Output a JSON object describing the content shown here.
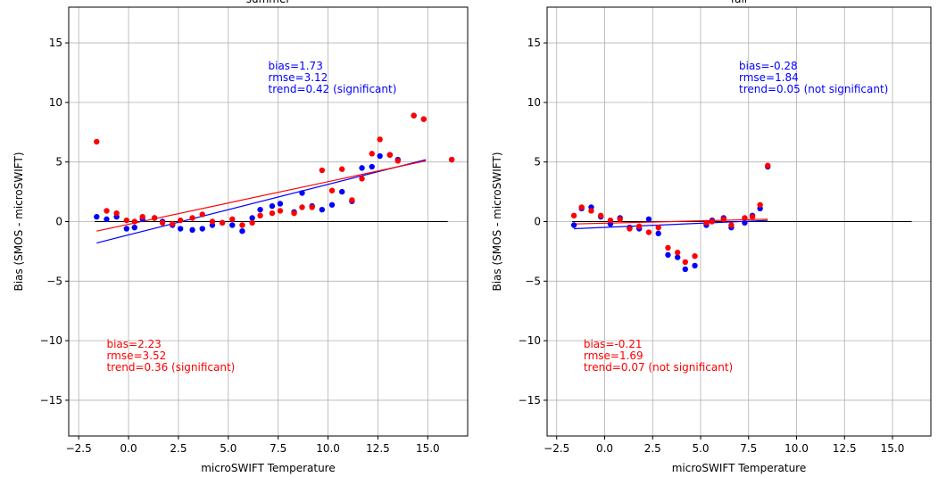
{
  "chart_data": [
    {
      "type": "scatter",
      "title": "summer",
      "xlabel": "microSWIFT Temperature",
      "ylabel": "Bias (SMOS - microSWIFT)",
      "xlim": [
        -3.0,
        17.0
      ],
      "ylim": [
        -18,
        18
      ],
      "xticks": [
        -2.5,
        0.0,
        2.5,
        5.0,
        7.5,
        10.0,
        12.5,
        15.0
      ],
      "xtick_labels": [
        "−2.5",
        "0.0",
        "2.5",
        "5.0",
        "7.5",
        "10.0",
        "12.5",
        "15.0"
      ],
      "yticks": [
        -15,
        -10,
        -5,
        0,
        5,
        10,
        15
      ],
      "ytick_labels": [
        "−15",
        "−10",
        "−5",
        "0",
        "5",
        "10",
        "15"
      ],
      "grid": true,
      "zero_line": [
        -1.7,
        16.0
      ],
      "series": [
        {
          "color": "#0000ff",
          "points": [
            [
              -1.6,
              0.4
            ],
            [
              -1.1,
              0.2
            ],
            [
              -0.6,
              0.4
            ],
            [
              -0.1,
              -0.6
            ],
            [
              0.3,
              -0.5
            ],
            [
              0.7,
              0.2
            ],
            [
              1.3,
              0.3
            ],
            [
              1.7,
              0.0
            ],
            [
              2.2,
              -0.3
            ],
            [
              2.6,
              -0.6
            ],
            [
              3.2,
              -0.7
            ],
            [
              3.7,
              -0.6
            ],
            [
              4.2,
              -0.3
            ],
            [
              4.7,
              -0.1
            ],
            [
              5.2,
              -0.3
            ],
            [
              5.7,
              -0.8
            ],
            [
              6.2,
              0.3
            ],
            [
              6.6,
              1.0
            ],
            [
              7.2,
              1.3
            ],
            [
              7.6,
              1.5
            ],
            [
              8.3,
              0.8
            ],
            [
              8.7,
              2.4
            ],
            [
              9.2,
              1.3
            ],
            [
              9.7,
              1.0
            ],
            [
              10.2,
              1.4
            ],
            [
              10.7,
              2.5
            ],
            [
              11.2,
              1.7
            ],
            [
              11.7,
              4.5
            ],
            [
              12.2,
              4.6
            ],
            [
              12.6,
              5.5
            ],
            [
              13.1,
              5.6
            ],
            [
              13.5,
              5.2
            ],
            [
              14.3,
              8.9
            ],
            [
              14.8,
              8.6
            ],
            [
              16.2,
              5.2
            ]
          ],
          "trend_line": [
            [
              -1.6,
              -1.8
            ],
            [
              14.9,
              5.2
            ]
          ]
        },
        {
          "color": "#ff0000",
          "points": [
            [
              -1.6,
              6.7
            ],
            [
              -1.1,
              0.9
            ],
            [
              -0.6,
              0.7
            ],
            [
              -0.1,
              0.1
            ],
            [
              0.3,
              0.0
            ],
            [
              0.7,
              0.4
            ],
            [
              1.3,
              0.3
            ],
            [
              1.7,
              -0.1
            ],
            [
              2.2,
              -0.2
            ],
            [
              2.6,
              0.1
            ],
            [
              3.2,
              0.3
            ],
            [
              3.7,
              0.6
            ],
            [
              4.2,
              0.0
            ],
            [
              4.7,
              -0.1
            ],
            [
              5.2,
              0.2
            ],
            [
              5.7,
              -0.3
            ],
            [
              6.2,
              -0.1
            ],
            [
              6.6,
              0.5
            ],
            [
              7.2,
              0.7
            ],
            [
              7.6,
              0.9
            ],
            [
              8.3,
              0.7
            ],
            [
              8.7,
              1.2
            ],
            [
              9.2,
              1.2
            ],
            [
              9.7,
              4.3
            ],
            [
              10.2,
              2.6
            ],
            [
              10.7,
              4.4
            ],
            [
              11.2,
              1.8
            ],
            [
              11.7,
              3.6
            ],
            [
              12.2,
              5.7
            ],
            [
              12.6,
              6.9
            ],
            [
              13.1,
              5.6
            ],
            [
              13.5,
              5.1
            ],
            [
              14.3,
              8.9
            ],
            [
              14.8,
              8.6
            ],
            [
              16.2,
              5.2
            ]
          ],
          "trend_line": [
            [
              -1.6,
              -0.8
            ],
            [
              14.9,
              5.1
            ]
          ]
        }
      ],
      "annotations": [
        {
          "color": "#0000ff",
          "x": 7.0,
          "lines": [
            "bias=1.73",
            "rmse=3.12",
            "trend=0.42 (significant)"
          ]
        },
        {
          "color": "#ff0000",
          "x": -1.1,
          "lines": [
            "bias=2.23",
            "rmse=3.52",
            "trend=0.36 (significant)"
          ]
        }
      ]
    },
    {
      "type": "scatter",
      "title": "fall",
      "xlabel": "microSWIFT Temperature",
      "ylabel": "Bias (SMOS - microSWIFT)",
      "xlim": [
        -3.0,
        17.0
      ],
      "ylim": [
        -18,
        18
      ],
      "xticks": [
        -2.5,
        0.0,
        2.5,
        5.0,
        7.5,
        10.0,
        12.5,
        15.0
      ],
      "xtick_labels": [
        "−2.5",
        "0.0",
        "2.5",
        "5.0",
        "7.5",
        "10.0",
        "12.5",
        "15.0"
      ],
      "yticks": [
        -15,
        -10,
        -5,
        0,
        5,
        10,
        15
      ],
      "ytick_labels": [
        "−15",
        "−10",
        "−5",
        "0",
        "5",
        "10",
        "15"
      ],
      "grid": true,
      "zero_line": [
        -1.7,
        16.0
      ],
      "series": [
        {
          "color": "#0000ff",
          "points": [
            [
              -1.6,
              -0.3
            ],
            [
              -1.2,
              1.1
            ],
            [
              -0.7,
              1.2
            ],
            [
              -0.2,
              0.4
            ],
            [
              0.3,
              -0.2
            ],
            [
              0.8,
              0.3
            ],
            [
              1.3,
              -0.5
            ],
            [
              1.8,
              -0.6
            ],
            [
              2.3,
              0.2
            ],
            [
              2.8,
              -1.0
            ],
            [
              3.3,
              -2.8
            ],
            [
              3.8,
              -3.0
            ],
            [
              4.2,
              -4.0
            ],
            [
              4.7,
              -3.7
            ],
            [
              5.3,
              -0.3
            ],
            [
              5.6,
              0.1
            ],
            [
              6.2,
              0.3
            ],
            [
              6.6,
              -0.5
            ],
            [
              7.3,
              -0.1
            ],
            [
              7.7,
              0.5
            ],
            [
              8.1,
              1.1
            ],
            [
              8.5,
              4.6
            ]
          ],
          "trend_line": [
            [
              -1.6,
              -0.6
            ],
            [
              8.5,
              0.1
            ]
          ]
        },
        {
          "color": "#ff0000",
          "points": [
            [
              -1.6,
              0.5
            ],
            [
              -1.2,
              1.2
            ],
            [
              -0.7,
              0.9
            ],
            [
              -0.2,
              0.5
            ],
            [
              0.3,
              0.1
            ],
            [
              0.8,
              0.2
            ],
            [
              1.3,
              -0.6
            ],
            [
              1.8,
              -0.4
            ],
            [
              2.3,
              -0.9
            ],
            [
              2.8,
              -0.5
            ],
            [
              3.3,
              -2.2
            ],
            [
              3.8,
              -2.6
            ],
            [
              4.2,
              -3.4
            ],
            [
              4.7,
              -2.9
            ],
            [
              5.3,
              -0.1
            ],
            [
              5.6,
              0.0
            ],
            [
              6.2,
              0.2
            ],
            [
              6.6,
              -0.3
            ],
            [
              7.3,
              0.3
            ],
            [
              7.7,
              0.4
            ],
            [
              8.1,
              1.4
            ],
            [
              8.5,
              4.7
            ]
          ],
          "trend_line": [
            [
              -1.6,
              -0.2
            ],
            [
              8.5,
              0.2
            ]
          ]
        }
      ],
      "annotations": [
        {
          "color": "#0000ff",
          "x": 7.0,
          "lines": [
            "bias=-0.28",
            "rmse=1.84",
            "trend=0.05 (not significant)"
          ]
        },
        {
          "color": "#ff0000",
          "x": -1.1,
          "lines": [
            "bias=-0.21",
            "rmse=1.69",
            "trend=0.07 (not significant)"
          ]
        }
      ]
    }
  ]
}
